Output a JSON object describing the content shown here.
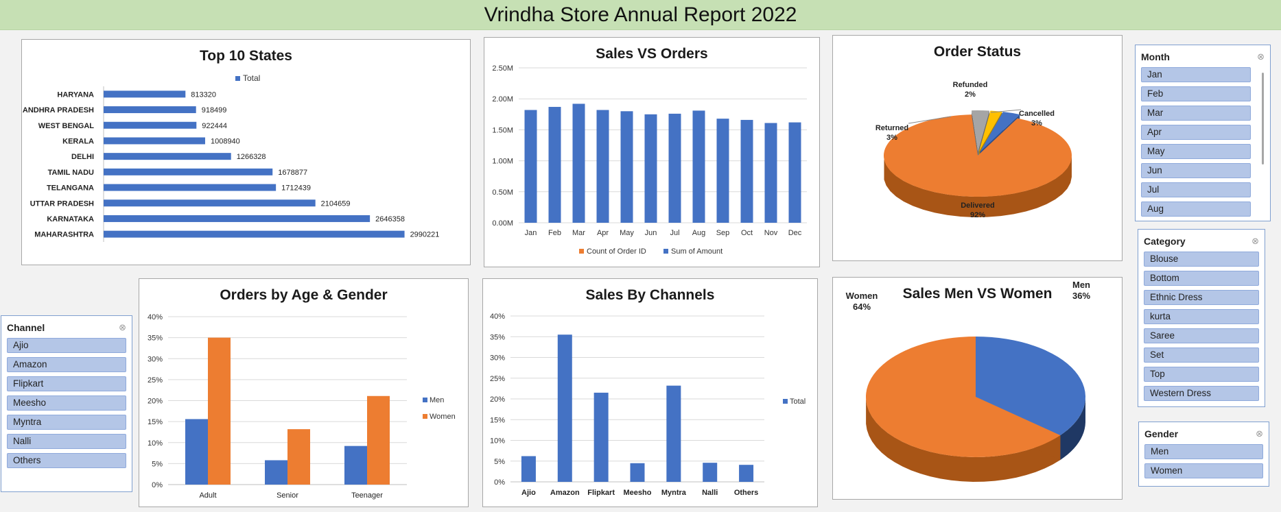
{
  "header": {
    "title": "Vrindha Store Annual Report 2022"
  },
  "colors": {
    "blue": "#4472c4",
    "orange": "#ed7d31",
    "gray": "#a5a5a5",
    "gold": "#ffc000",
    "title_green": "#c6e0b4"
  },
  "slicers": {
    "month": {
      "title": "Month",
      "items": [
        "Jan",
        "Feb",
        "Mar",
        "Apr",
        "May",
        "Jun",
        "Jul",
        "Aug"
      ]
    },
    "category": {
      "title": "Category",
      "items": [
        "Blouse",
        "Bottom",
        "Ethnic Dress",
        "kurta",
        "Saree",
        "Set",
        "Top",
        "Western Dress"
      ]
    },
    "gender": {
      "title": "Gender",
      "items": [
        "Men",
        "Women"
      ]
    },
    "channel": {
      "title": "Channel",
      "items": [
        "Ajio",
        "Amazon",
        "Flipkart",
        "Meesho",
        "Myntra",
        "Nalli",
        "Others"
      ]
    }
  },
  "chart_data": [
    {
      "id": "states",
      "type": "bar",
      "orientation": "horizontal",
      "title": "Top 10 States",
      "legend": [
        "Total"
      ],
      "legend_position": "top",
      "categories": [
        "HARYANA",
        "ANDHRA PRADESH",
        "WEST BENGAL",
        "KERALA",
        "DELHI",
        "TAMIL NADU",
        "TELANGANA",
        "UTTAR PRADESH",
        "KARNATAKA",
        "MAHARASHTRA"
      ],
      "values": [
        813320,
        918499,
        922444,
        1008940,
        1266328,
        1678877,
        1712439,
        2104659,
        2646358,
        2990221
      ],
      "value_labels": [
        "813320",
        "918499",
        "922444",
        "1008940",
        "1266328",
        "1678877",
        "1712439",
        "2104659",
        "2646358",
        "2990221"
      ]
    },
    {
      "id": "sales_orders",
      "type": "bar",
      "title": "Sales VS Orders",
      "categories": [
        "Jan",
        "Feb",
        "Mar",
        "Apr",
        "May",
        "Jun",
        "Jul",
        "Aug",
        "Sep",
        "Oct",
        "Nov",
        "Dec"
      ],
      "series": [
        {
          "name": "Count of Order ID",
          "values": [
            0,
            0,
            0,
            0,
            0,
            0,
            0,
            0,
            0,
            0,
            0,
            0
          ]
        },
        {
          "name": "Sum of Amount",
          "values": [
            1820000,
            1870000,
            1920000,
            1820000,
            1800000,
            1750000,
            1760000,
            1810000,
            1680000,
            1660000,
            1610000,
            1620000
          ]
        }
      ],
      "ylim": [
        0,
        2500000
      ],
      "yticks": [
        "0.00M",
        "0.50M",
        "1.00M",
        "1.50M",
        "2.00M",
        "2.50M"
      ],
      "legend_position": "bottom",
      "grid": true
    },
    {
      "id": "order_status",
      "type": "pie",
      "title": "Order Status",
      "slices": [
        {
          "label": "Delivered",
          "value": 92,
          "text": "92%"
        },
        {
          "label": "Returned",
          "value": 3,
          "text": "3%"
        },
        {
          "label": "Refunded",
          "value": 2,
          "text": "2%"
        },
        {
          "label": "Cancelled",
          "value": 3,
          "text": "3%"
        }
      ]
    },
    {
      "id": "age_gender",
      "type": "bar",
      "title": "Orders by Age & Gender",
      "categories": [
        "Adult",
        "Senior",
        "Teenager"
      ],
      "series": [
        {
          "name": "Men",
          "values": [
            15.6,
            5.8,
            9.2
          ]
        },
        {
          "name": "Women",
          "values": [
            35.0,
            13.2,
            21.1
          ]
        }
      ],
      "ylim": [
        0,
        40
      ],
      "yticks": [
        "0%",
        "5%",
        "10%",
        "15%",
        "20%",
        "25%",
        "30%",
        "35%",
        "40%"
      ],
      "legend_position": "right",
      "grid": true
    },
    {
      "id": "channels",
      "type": "bar",
      "title": "Sales By Channels",
      "categories": [
        "Ajio",
        "Amazon",
        "Flipkart",
        "Meesho",
        "Myntra",
        "Nalli",
        "Others"
      ],
      "values": [
        6.2,
        35.5,
        21.5,
        4.5,
        23.2,
        4.6,
        4.1
      ],
      "legend": [
        "Total"
      ],
      "ylim": [
        0,
        40
      ],
      "yticks": [
        "0%",
        "5%",
        "10%",
        "15%",
        "20%",
        "25%",
        "30%",
        "35%",
        "40%"
      ],
      "legend_position": "right",
      "grid": true
    },
    {
      "id": "men_women",
      "type": "pie",
      "title": "Sales Men VS Women",
      "slices": [
        {
          "label": "Men",
          "value": 36,
          "text": "36%"
        },
        {
          "label": "Women",
          "value": 64,
          "text": "64%"
        }
      ]
    }
  ]
}
